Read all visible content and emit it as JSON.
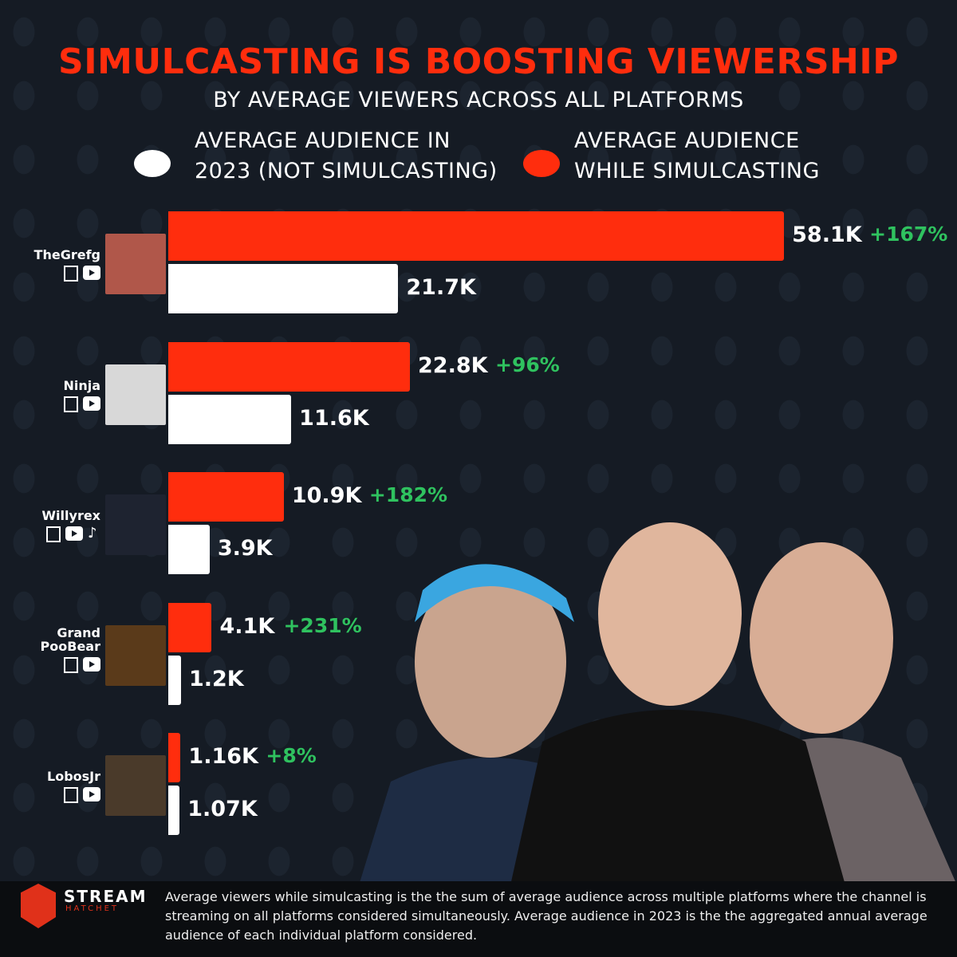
{
  "chart_data": {
    "type": "bar",
    "orientation": "horizontal",
    "title": "SIMULCASTING IS BOOSTING VIEWERSHIP",
    "subtitle": "BY AVERAGE VIEWERS ACROSS ALL PLATFORMS",
    "legend_placement": "top",
    "categories": [
      "TheGrefg",
      "Ninja",
      "Willyrex",
      "Grand PooBear",
      "LobosJr"
    ],
    "platforms": [
      [
        "twitch",
        "youtube"
      ],
      [
        "twitch",
        "youtube"
      ],
      [
        "twitch",
        "youtube",
        "tiktok"
      ],
      [
        "twitch",
        "youtube"
      ],
      [
        "twitch",
        "youtube"
      ]
    ],
    "series": [
      {
        "name": "AVERAGE AUDIENCE WHILE SIMULCASTING",
        "color": "#ff2d0d",
        "values": [
          58.1,
          22.8,
          10.9,
          4.1,
          1.16
        ],
        "labels": [
          "58.1K",
          "22.8K",
          "10.9K",
          "4.1K",
          "1.16K"
        ]
      },
      {
        "name": "AVERAGE AUDIENCE IN 2023 (NOT SIMULCASTING)",
        "color": "#ffffff",
        "values": [
          21.7,
          11.6,
          3.9,
          1.2,
          1.07
        ],
        "labels": [
          "21.7K",
          "11.6K",
          "3.9K",
          "1.2K",
          "1.07K"
        ]
      }
    ],
    "change_labels": [
      "+167%",
      "+96%",
      "+182%",
      "+231%",
      "+8%"
    ],
    "change_color": "#2fc25f"
  },
  "legend": {
    "white_line1": "AVERAGE AUDIENCE IN",
    "white_line2": "2023 (NOT SIMULCASTING)",
    "red_line1": "AVERAGE AUDIENCE",
    "red_line2": "WHILE SIMULCASTING"
  },
  "footer": {
    "brand": "STREAM",
    "brand_sub": "HATCHET",
    "note": "Average viewers while simulcasting is the the sum of average audience across multiple platforms where the channel is streaming on all platforms considered simultaneously. Average audience in 2023 is the the aggregated annual average audience of each individual platform considered."
  }
}
